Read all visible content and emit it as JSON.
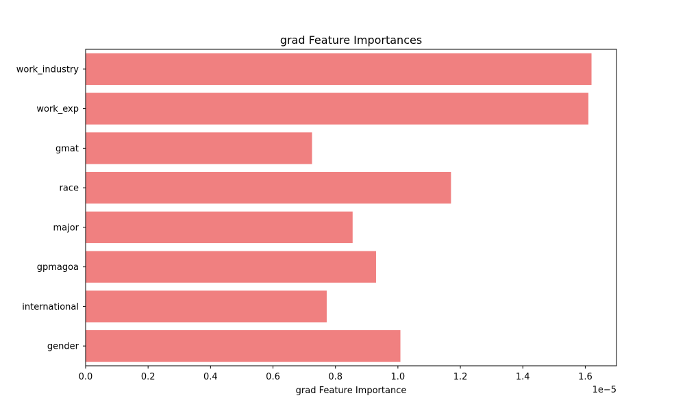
{
  "chart_data": {
    "type": "bar",
    "orientation": "horizontal",
    "title": "grad Feature Importances",
    "xlabel": "grad Feature Importance",
    "ylabel": "",
    "x_scale_label": "1e−5",
    "categories": [
      "work_industry",
      "work_exp",
      "gmat",
      "race",
      "major",
      "gpmagoa",
      "international",
      "gender"
    ],
    "values": [
      1.62,
      1.61,
      0.725,
      1.17,
      0.855,
      0.93,
      0.772,
      1.008
    ],
    "xlim": [
      0,
      1.7
    ],
    "xticks": [
      0.0,
      0.2,
      0.4,
      0.6,
      0.8,
      1.0,
      1.2,
      1.4,
      1.6
    ],
    "xtick_labels": [
      "0.0",
      "0.2",
      "0.4",
      "0.6",
      "0.8",
      "1.0",
      "1.2",
      "1.4",
      "1.6"
    ],
    "bar_color": "#f08080",
    "grid": false,
    "legend": "none"
  }
}
